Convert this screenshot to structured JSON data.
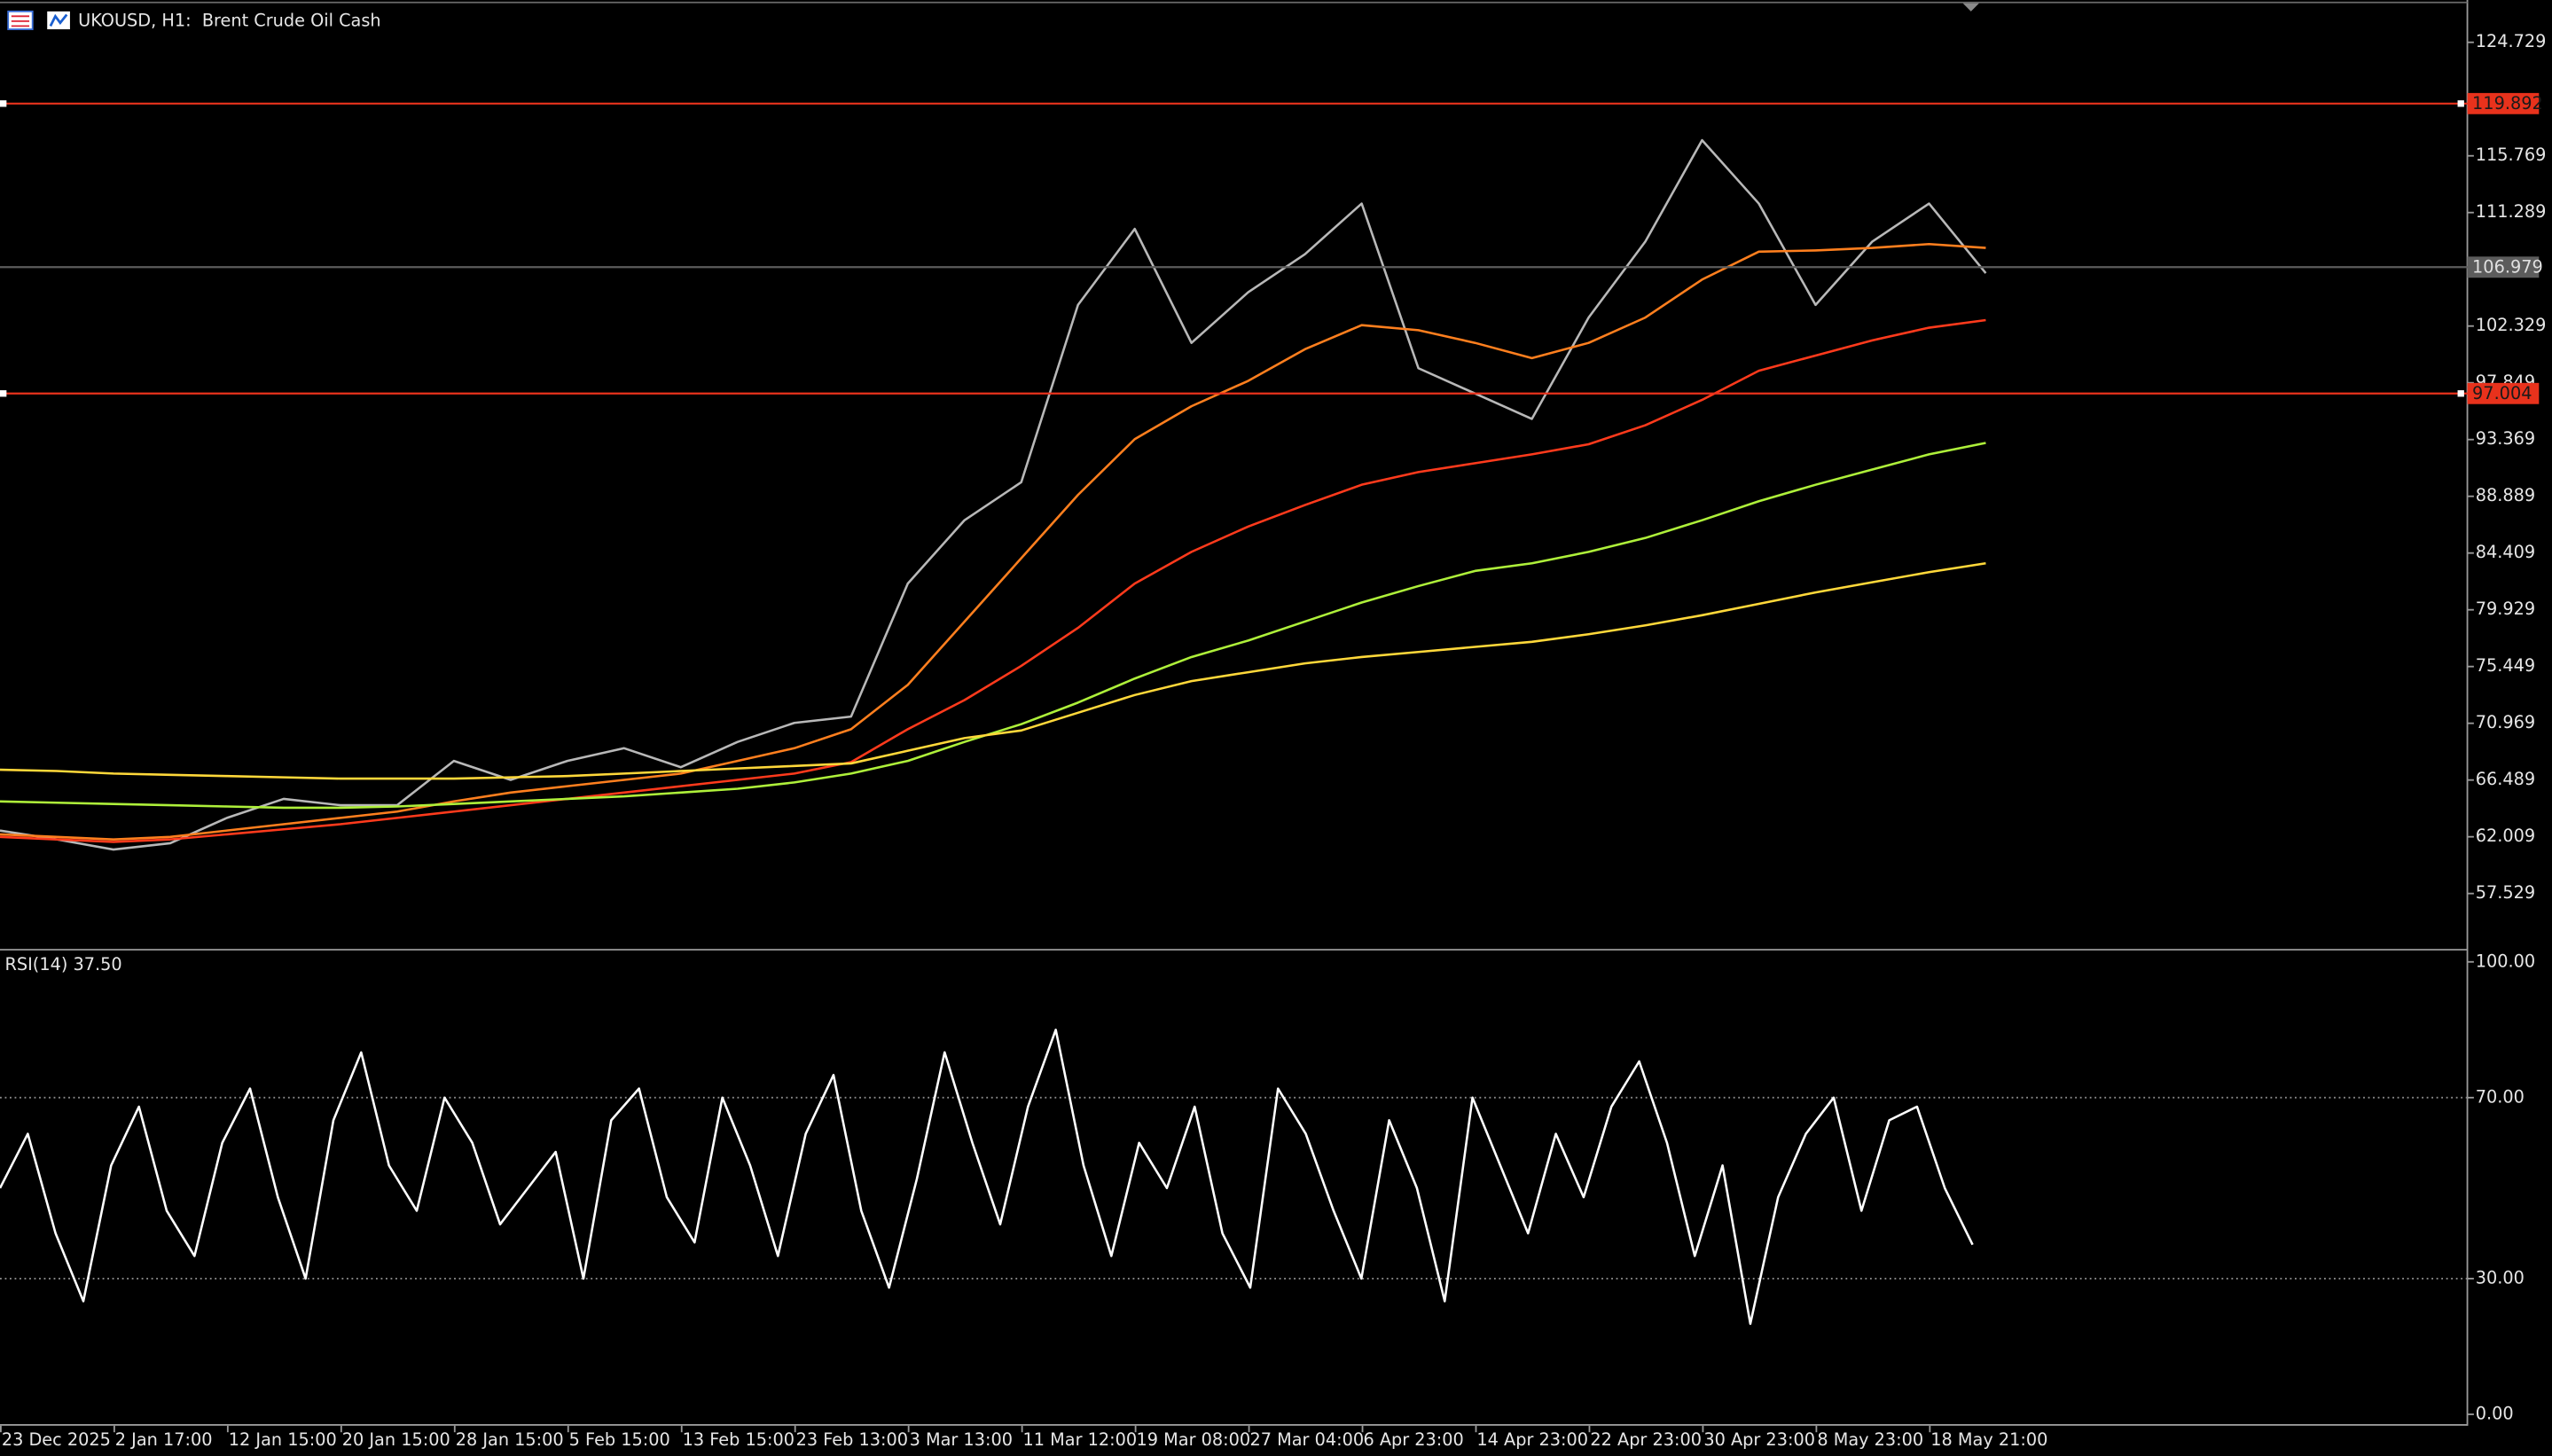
{
  "chart_data": [
    {
      "type": "line",
      "title": "UKOUSD, H1:  Brent Crude Oil Cash",
      "categories": [
        "23 Dec 2025",
        null,
        "2 Jan 17:00",
        null,
        "12 Jan 15:00",
        null,
        "20 Jan 15:00",
        null,
        "28 Jan 15:00",
        null,
        "5 Feb 15:00",
        null,
        "13 Feb 15:00",
        null,
        "23 Feb 13:00",
        null,
        "3 Mar 13:00",
        null,
        "11 Mar 12:00",
        null,
        "19 Mar 08:00",
        null,
        "27 Mar 04:00",
        null,
        "6 Apr 23:00",
        null,
        "14 Apr 23:00",
        null,
        "22 Apr 23:00",
        null,
        "30 Apr 23:00",
        null,
        "8 May 23:00",
        null,
        "18 May 21:00",
        null
      ],
      "series": [
        {
          "color": "#b8b8b8",
          "values": [
            62.5,
            61.8,
            61.0,
            61.5,
            63.5,
            65.0,
            64.5,
            64.5,
            68.0,
            66.5,
            68.0,
            69.0,
            67.5,
            69.5,
            71.0,
            71.5,
            82.0,
            87.0,
            90.0,
            104.0,
            110.0,
            101.0,
            105.0,
            108.0,
            112.0,
            99.0,
            97.0,
            95.0,
            103.0,
            109.0,
            117.0,
            112.0,
            104.0,
            109.0,
            112.0,
            106.5
          ]
        },
        {
          "color": "#ff7f1e",
          "values": [
            62.2,
            62.0,
            61.8,
            62.0,
            62.5,
            63.0,
            63.5,
            64.0,
            64.8,
            65.5,
            66.0,
            66.5,
            67.0,
            68.0,
            69.0,
            70.5,
            74.0,
            79.0,
            84.0,
            89.0,
            93.4,
            96.0,
            98.0,
            100.5,
            102.4,
            102.0,
            101.0,
            99.8,
            101.0,
            103.0,
            106.0,
            108.2,
            108.3,
            108.5,
            108.8,
            108.5
          ]
        },
        {
          "color": "#ff3a1c",
          "values": [
            62.0,
            61.8,
            61.6,
            61.8,
            62.2,
            62.6,
            63.0,
            63.5,
            64.0,
            64.5,
            65.0,
            65.5,
            66.0,
            66.5,
            67.0,
            67.9,
            70.5,
            72.8,
            75.5,
            78.5,
            82.0,
            84.5,
            86.5,
            88.2,
            89.8,
            90.8,
            91.5,
            92.2,
            93.0,
            94.5,
            96.5,
            98.8,
            100.0,
            101.2,
            102.2,
            102.8
          ]
        },
        {
          "color": "#aef03a",
          "values": [
            64.8,
            64.7,
            64.6,
            64.5,
            64.4,
            64.3,
            64.3,
            64.4,
            64.6,
            64.8,
            65.0,
            65.2,
            65.5,
            65.8,
            66.3,
            67.0,
            68.0,
            69.5,
            70.9,
            72.6,
            74.5,
            76.2,
            77.5,
            79.0,
            80.5,
            81.8,
            83.0,
            83.6,
            84.5,
            85.6,
            87.0,
            88.5,
            89.8,
            91.0,
            92.2,
            93.1
          ]
        },
        {
          "color": "#ffd83a",
          "values": [
            67.3,
            67.2,
            67.0,
            66.9,
            66.8,
            66.7,
            66.6,
            66.6,
            66.6,
            66.7,
            66.8,
            67.0,
            67.2,
            67.4,
            67.6,
            67.8,
            68.8,
            69.8,
            70.4,
            71.8,
            73.2,
            74.3,
            75.0,
            75.7,
            76.2,
            76.6,
            77.0,
            77.4,
            78.0,
            78.7,
            79.5,
            80.4,
            81.3,
            82.1,
            82.9,
            83.6
          ]
        }
      ],
      "ylim": [
        53.16,
        128.07
      ],
      "yticks": [
        124.729,
        115.769,
        111.289,
        102.329,
        97.849,
        93.369,
        88.889,
        84.409,
        79.929,
        75.449,
        70.969,
        66.489,
        62.009,
        57.529
      ],
      "levels": [
        {
          "value": 119.892,
          "color": "#e8321c",
          "text_color": "#1a1a1a"
        },
        {
          "value": 106.979,
          "color": "#5c5c5c",
          "text_color": "#e0e0e0"
        },
        {
          "value": 97.004,
          "color": "#e8321c",
          "text_color": "#1a1a1a"
        }
      ]
    },
    {
      "type": "line",
      "title": "RSI(14) 37.50",
      "series": [
        {
          "color": "#ffffff",
          "values": [
            50,
            62,
            40,
            25,
            55,
            68,
            45,
            35,
            60,
            72,
            48,
            30,
            65,
            80,
            55,
            45,
            70,
            60,
            42,
            50,
            58,
            30,
            65,
            72,
            48,
            38,
            70,
            55,
            35,
            62,
            75,
            45,
            28,
            52,
            80,
            60,
            42,
            68,
            85,
            55,
            35,
            60,
            50,
            68,
            40,
            28,
            72,
            62,
            45,
            30,
            65,
            50,
            25,
            70,
            55,
            40,
            62,
            48,
            68,
            78,
            60,
            35,
            55,
            20,
            48,
            62,
            70,
            45,
            65,
            68,
            50,
            37.5
          ]
        }
      ],
      "ylim": [
        0,
        100
      ],
      "yticks": [
        {
          "value": 100,
          "label": "100.00"
        },
        {
          "value": 70,
          "label": "70.00"
        },
        {
          "value": 30,
          "label": "30.00"
        },
        {
          "value": 0,
          "label": "0.00"
        }
      ]
    }
  ]
}
